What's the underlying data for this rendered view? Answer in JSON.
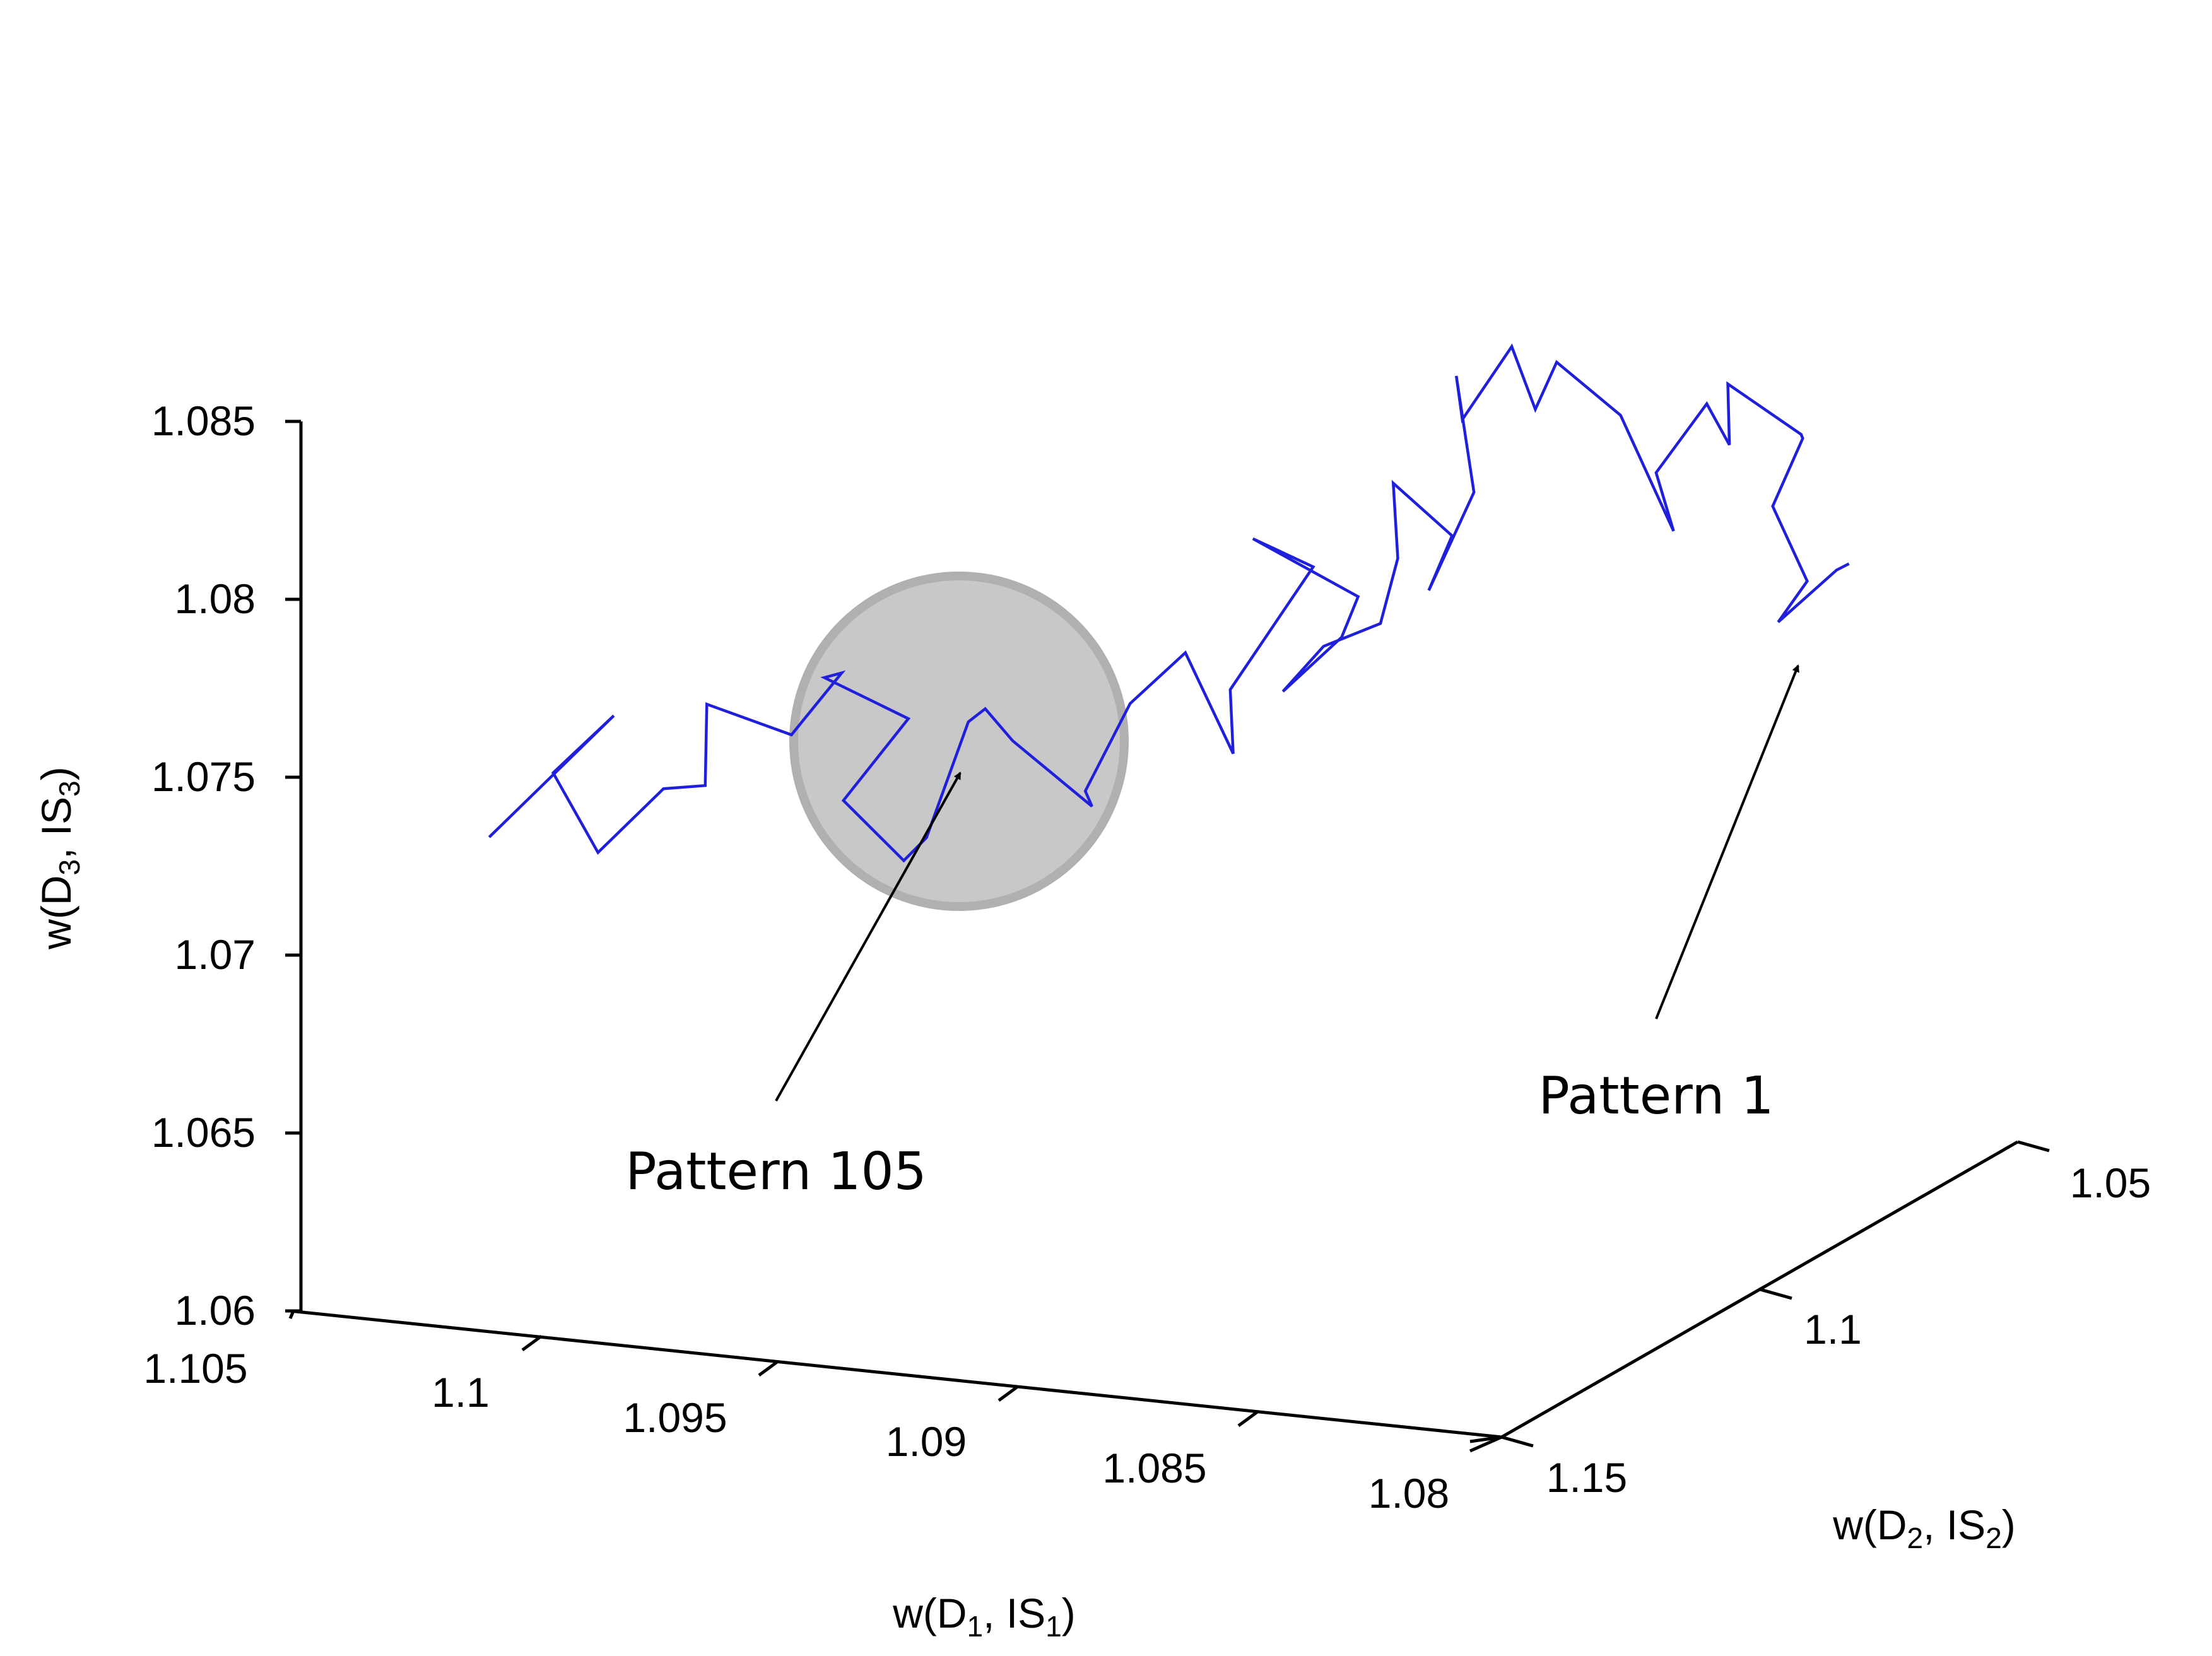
{
  "colors": {
    "trajectory": "#1f1fdc",
    "axis": "#000000",
    "highlight_fill": "#c8c8c8",
    "highlight_stroke": "#b0b0b0"
  },
  "chart_data": {
    "type": "line-3d",
    "title": "",
    "x_axis": {
      "label": "w(D1, IS1)",
      "ticks": [
        "1.105",
        "1.1",
        "1.095",
        "1.09",
        "1.085",
        "1.08"
      ],
      "range": [
        1.08,
        1.105
      ]
    },
    "y_axis": {
      "label": "w(D2, IS2)",
      "ticks": [
        "1.15",
        "1.1",
        "1.05"
      ],
      "range": [
        1.05,
        1.15
      ]
    },
    "z_axis": {
      "label": "w(D3, IS3)",
      "ticks": [
        "1.06",
        "1.065",
        "1.07",
        "1.075",
        "1.08",
        "1.085"
      ],
      "range": [
        1.06,
        1.085
      ]
    },
    "series": [
      {
        "points": [
          [
            1.0805,
            1.078,
            1.0785
          ],
          [
            1.0815,
            1.071,
            1.0776
          ],
          [
            1.0818,
            1.0795,
            1.0768
          ],
          [
            1.082,
            1.072,
            1.0773
          ],
          [
            1.0825,
            1.074,
            1.0795
          ],
          [
            1.0822,
            1.071,
            1.0812
          ],
          [
            1.0817,
            1.076,
            1.0818
          ],
          [
            1.083,
            1.078,
            1.0832
          ],
          [
            1.0835,
            1.073,
            1.081
          ],
          [
            1.0845,
            1.068,
            1.0816
          ],
          [
            1.0848,
            1.075,
            1.0802
          ],
          [
            1.0838,
            1.081,
            1.0792
          ],
          [
            1.085,
            1.08,
            1.0822
          ],
          [
            1.086,
            1.083,
            1.0838
          ],
          [
            1.0858,
            1.089,
            1.083
          ],
          [
            1.0865,
            1.087,
            1.0845
          ],
          [
            1.0872,
            1.09,
            1.0826
          ],
          [
            1.0869,
            1.094,
            1.0842
          ],
          [
            1.0876,
            1.084,
            1.08
          ],
          [
            1.088,
            1.089,
            1.0776
          ],
          [
            1.0872,
            1.092,
            1.0795
          ],
          [
            1.0882,
            1.094,
            1.081
          ],
          [
            1.088,
            1.095,
            1.079
          ],
          [
            1.0874,
            1.104,
            1.078
          ],
          [
            1.089,
            1.1,
            1.0768
          ],
          [
            1.0892,
            1.106,
            1.076
          ],
          [
            1.0882,
            1.104,
            1.0775
          ],
          [
            1.0885,
            1.098,
            1.0781
          ],
          [
            1.0895,
            1.109,
            1.0805
          ],
          [
            1.089,
            1.102,
            1.0792
          ],
          [
            1.0905,
            1.104,
            1.0757
          ],
          [
            1.0898,
            1.11,
            1.0745
          ],
          [
            1.091,
            1.108,
            1.077
          ],
          [
            1.0915,
            1.114,
            1.076
          ],
          [
            1.092,
            1.118,
            1.0738
          ],
          [
            1.0925,
            1.112,
            1.0728
          ],
          [
            1.0935,
            1.118,
            1.075
          ],
          [
            1.093,
            1.128,
            1.0768
          ],
          [
            1.0942,
            1.12,
            1.0756
          ],
          [
            1.094,
            1.13,
            1.0732
          ],
          [
            1.095,
            1.125,
            1.072
          ],
          [
            1.0955,
            1.132,
            1.0742
          ],
          [
            1.0948,
            1.126,
            1.0761
          ],
          [
            1.096,
            1.131,
            1.0775
          ],
          [
            1.0966,
            1.122,
            1.0768
          ],
          [
            1.097,
            1.128,
            1.0755
          ],
          [
            1.098,
            1.135,
            1.0768
          ],
          [
            1.0975,
            1.14,
            1.075
          ],
          [
            1.099,
            1.134,
            1.0742
          ],
          [
            1.0995,
            1.142,
            1.073
          ],
          [
            1.1,
            1.146,
            1.0755
          ],
          [
            1.0996,
            1.138,
            1.0765
          ],
          [
            1.101,
            1.149,
            1.0738
          ]
        ]
      }
    ],
    "annotations": [
      {
        "text": "Pattern 1",
        "point": [
          1.0805,
          1.078,
          1.0785
        ]
      },
      {
        "text": "Pattern 105",
        "point": [
          1.101,
          1.149,
          1.0738
        ]
      }
    ]
  }
}
